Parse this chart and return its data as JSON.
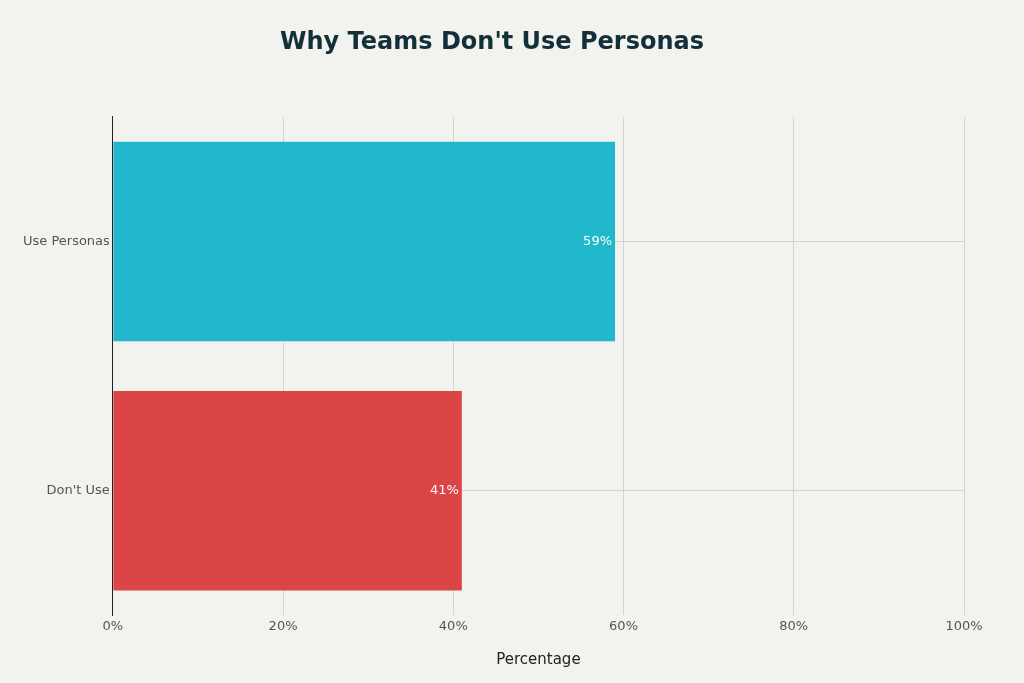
{
  "chart_data": {
    "type": "bar",
    "orientation": "horizontal",
    "title": "Why Teams Don't Use Personas",
    "xlabel": "Percentage",
    "categories": [
      "Use Personas",
      "Don't Use"
    ],
    "values": [
      59,
      41
    ],
    "colors": [
      "#21b8cd",
      "#db4545"
    ],
    "value_labels": [
      "59%",
      "41%"
    ],
    "xlim": [
      0,
      100
    ],
    "xticks": [
      {
        "value": 0,
        "label": "0%"
      },
      {
        "value": 20,
        "label": "20%"
      },
      {
        "value": 40,
        "label": "40%"
      },
      {
        "value": 60,
        "label": "60%"
      },
      {
        "value": 80,
        "label": "80%"
      },
      {
        "value": 100,
        "label": "100%"
      }
    ],
    "grid": true,
    "legend": false
  }
}
